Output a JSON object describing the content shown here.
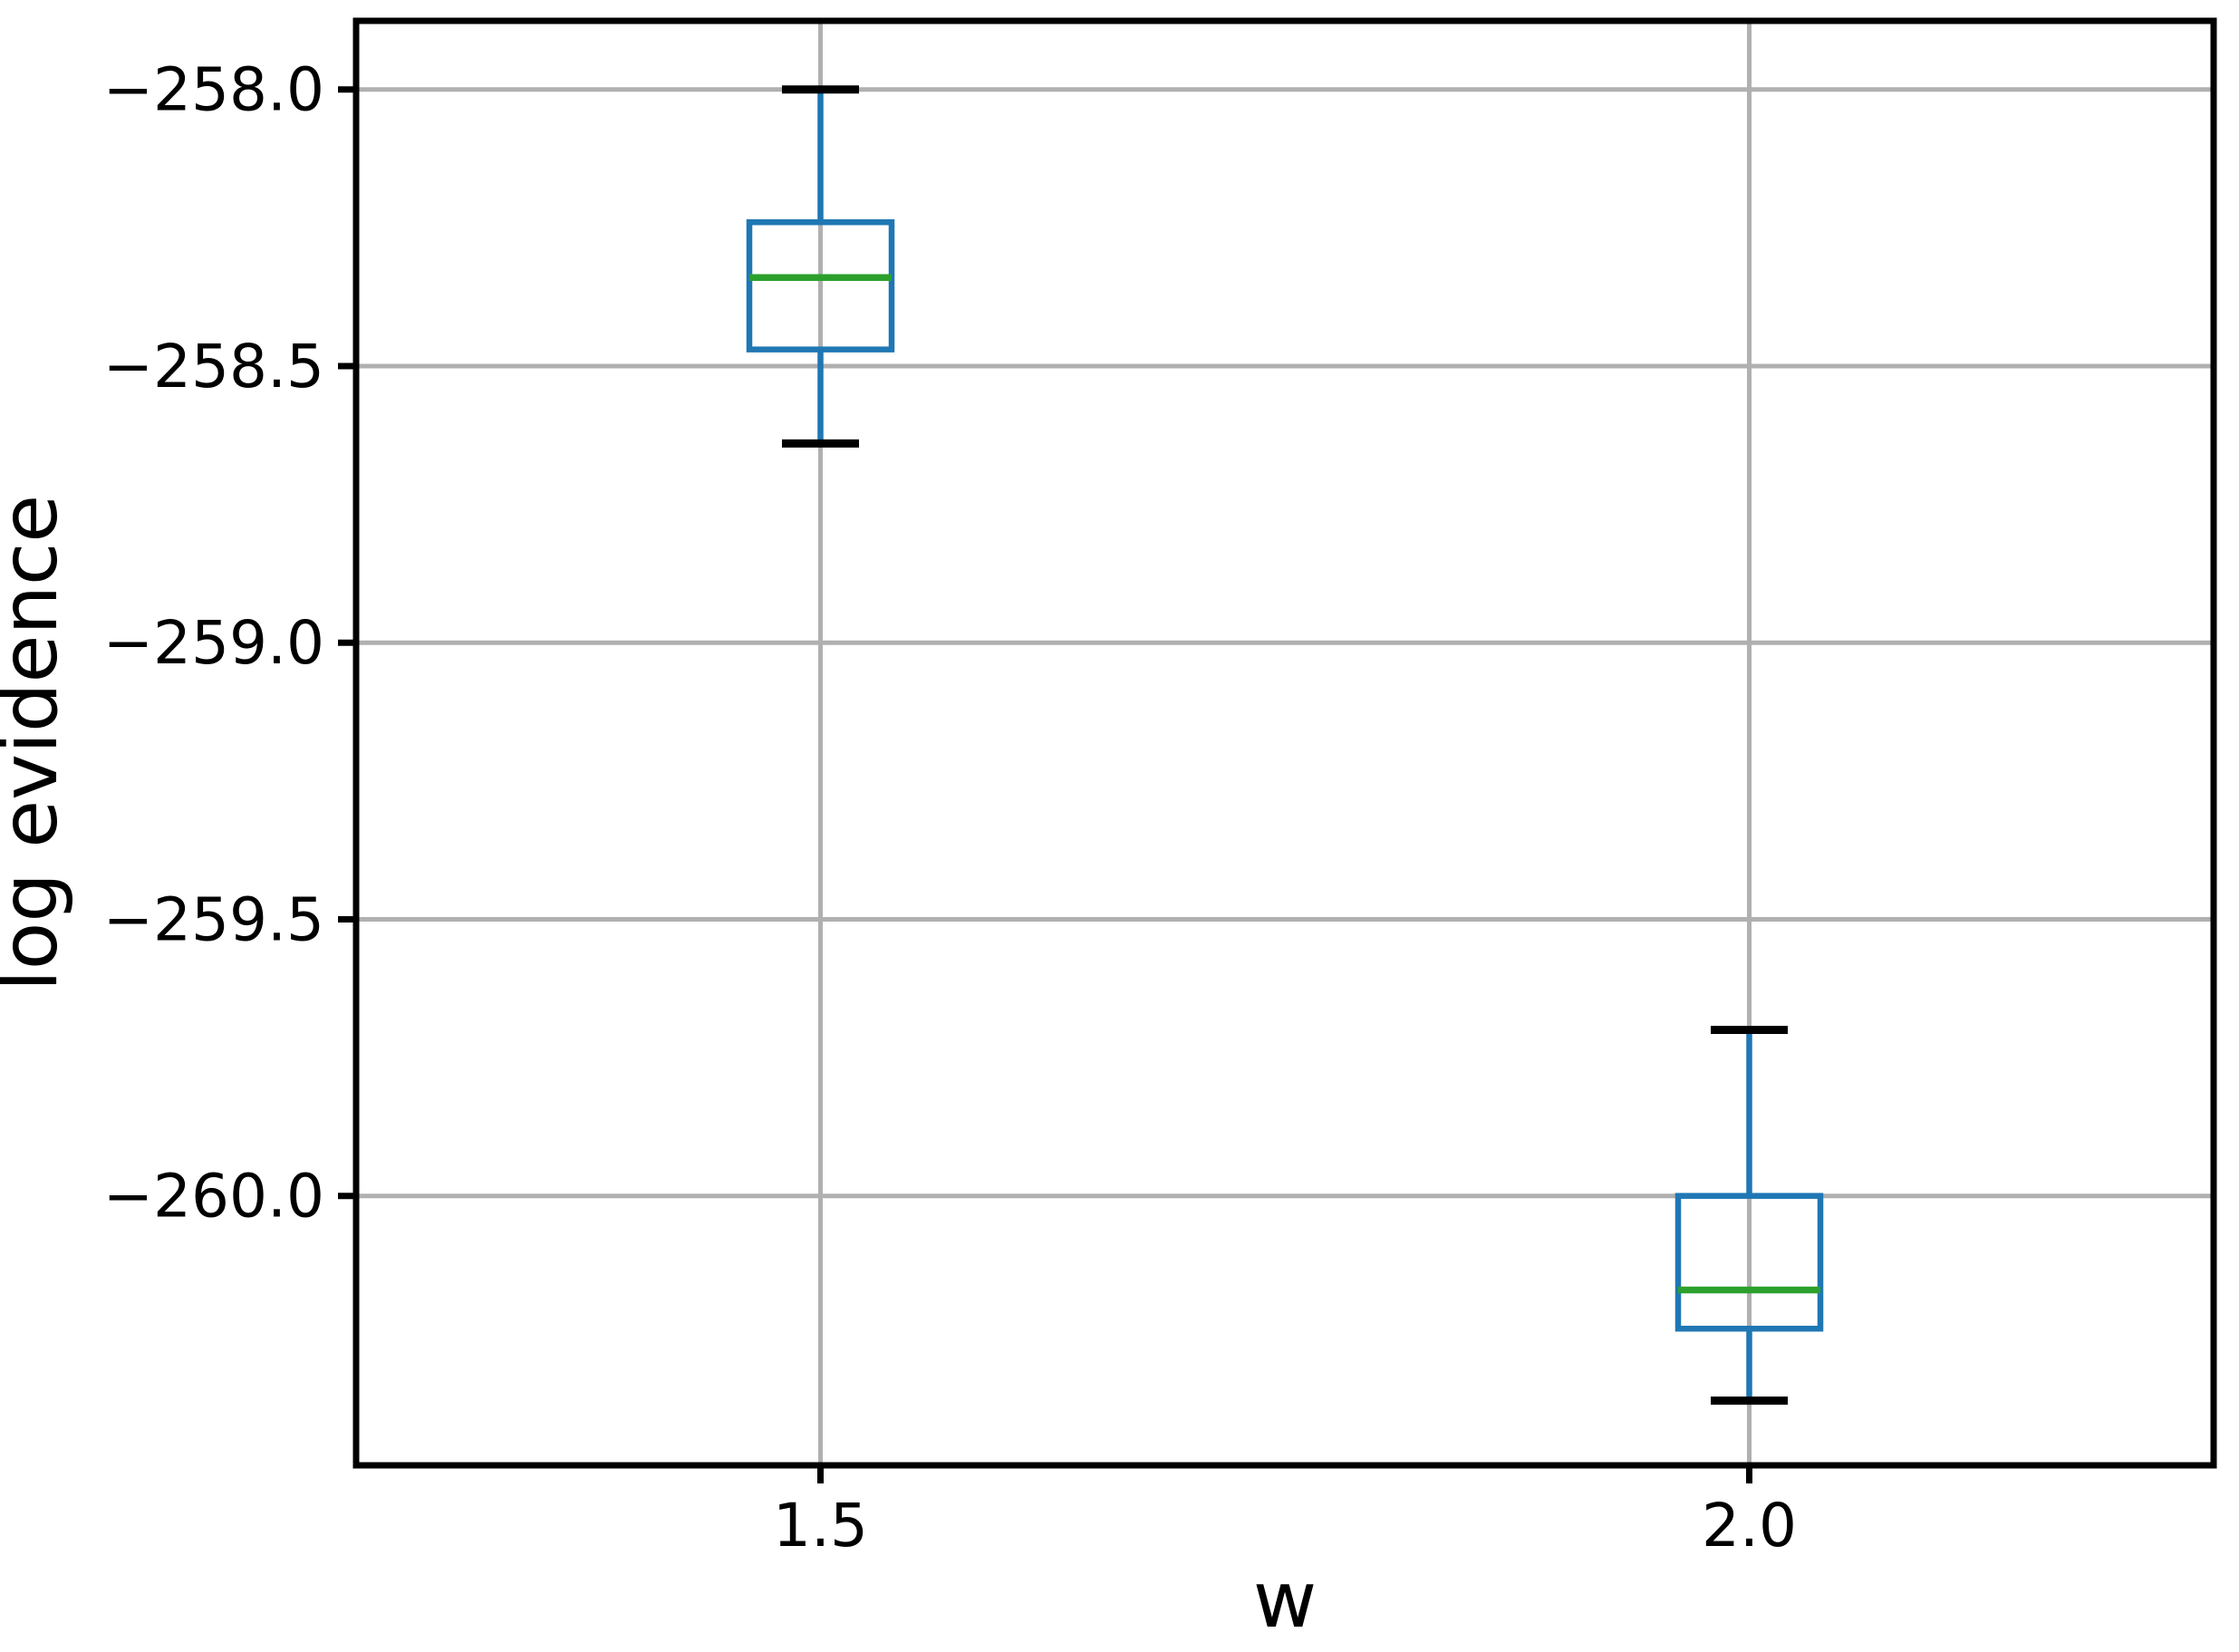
{
  "chart_data": {
    "type": "boxplot",
    "title": "",
    "xlabel": "w",
    "ylabel": "log evidence",
    "categories": [
      "1.5",
      "2.0"
    ],
    "x_positions": [
      1.5,
      2.0
    ],
    "xlim": [
      1.25,
      2.25
    ],
    "ylim": [
      -260.487,
      -257.876
    ],
    "y_ticks": [
      -258.0,
      -258.5,
      -259.0,
      -259.5,
      -260.0
    ],
    "y_tick_labels": [
      "−258.0",
      "−258.5",
      "−259.0",
      "−259.5",
      "−260.0"
    ],
    "x_tick_labels": [
      "1.5",
      "2.0"
    ],
    "grid": true,
    "legend_position": "none",
    "boxes": [
      {
        "label": "1.5",
        "x": 1.5,
        "whisker_low": -258.64,
        "q1": -258.47,
        "median": -258.34,
        "q3": -258.24,
        "whisker_high": -258.0
      },
      {
        "label": "2.0",
        "x": 2.0,
        "whisker_low": -260.37,
        "q1": -260.24,
        "median": -260.17,
        "q3": -260.0,
        "whisker_high": -259.7
      }
    ],
    "style": {
      "box_color": "#1f77b4",
      "whisker_color": "#1f77b4",
      "median_color": "#2ca02c",
      "cap_color": "#000000",
      "grid_color": "#b0b0b0",
      "spine_color": "#000000",
      "background_color": "#ffffff"
    }
  }
}
